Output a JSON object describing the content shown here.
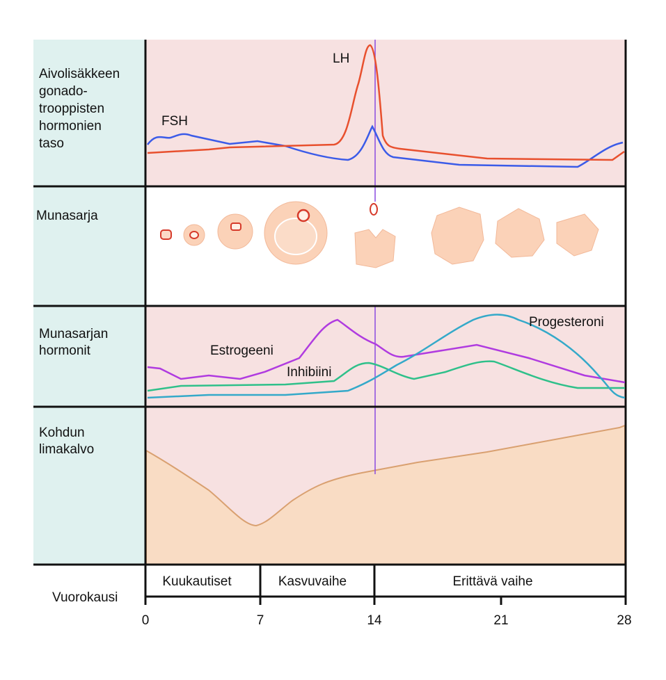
{
  "rows": [
    {
      "lines": [
        "Aivolisäkkeen",
        "gonado-",
        "trooppisten",
        "hormonien",
        "taso"
      ]
    },
    {
      "lines": [
        "Munasarja"
      ]
    },
    {
      "lines": [
        "Munasarjan",
        "hormonit"
      ]
    },
    {
      "lines": [
        "Kohdun",
        "limakalvo"
      ]
    }
  ],
  "curve_labels": {
    "fsh": "FSH",
    "lh": "LH",
    "estrogen": "Estrogeeni",
    "inhibin": "Inhibiini",
    "progesterone": "Progesteroni"
  },
  "phases": [
    "Kuukautiset",
    "Kasvuvaihe",
    "Erittävä vaihe"
  ],
  "axis": {
    "title": "Vuorokausi",
    "ticks": [
      "0",
      "7",
      "14",
      "21",
      "28"
    ]
  }
}
